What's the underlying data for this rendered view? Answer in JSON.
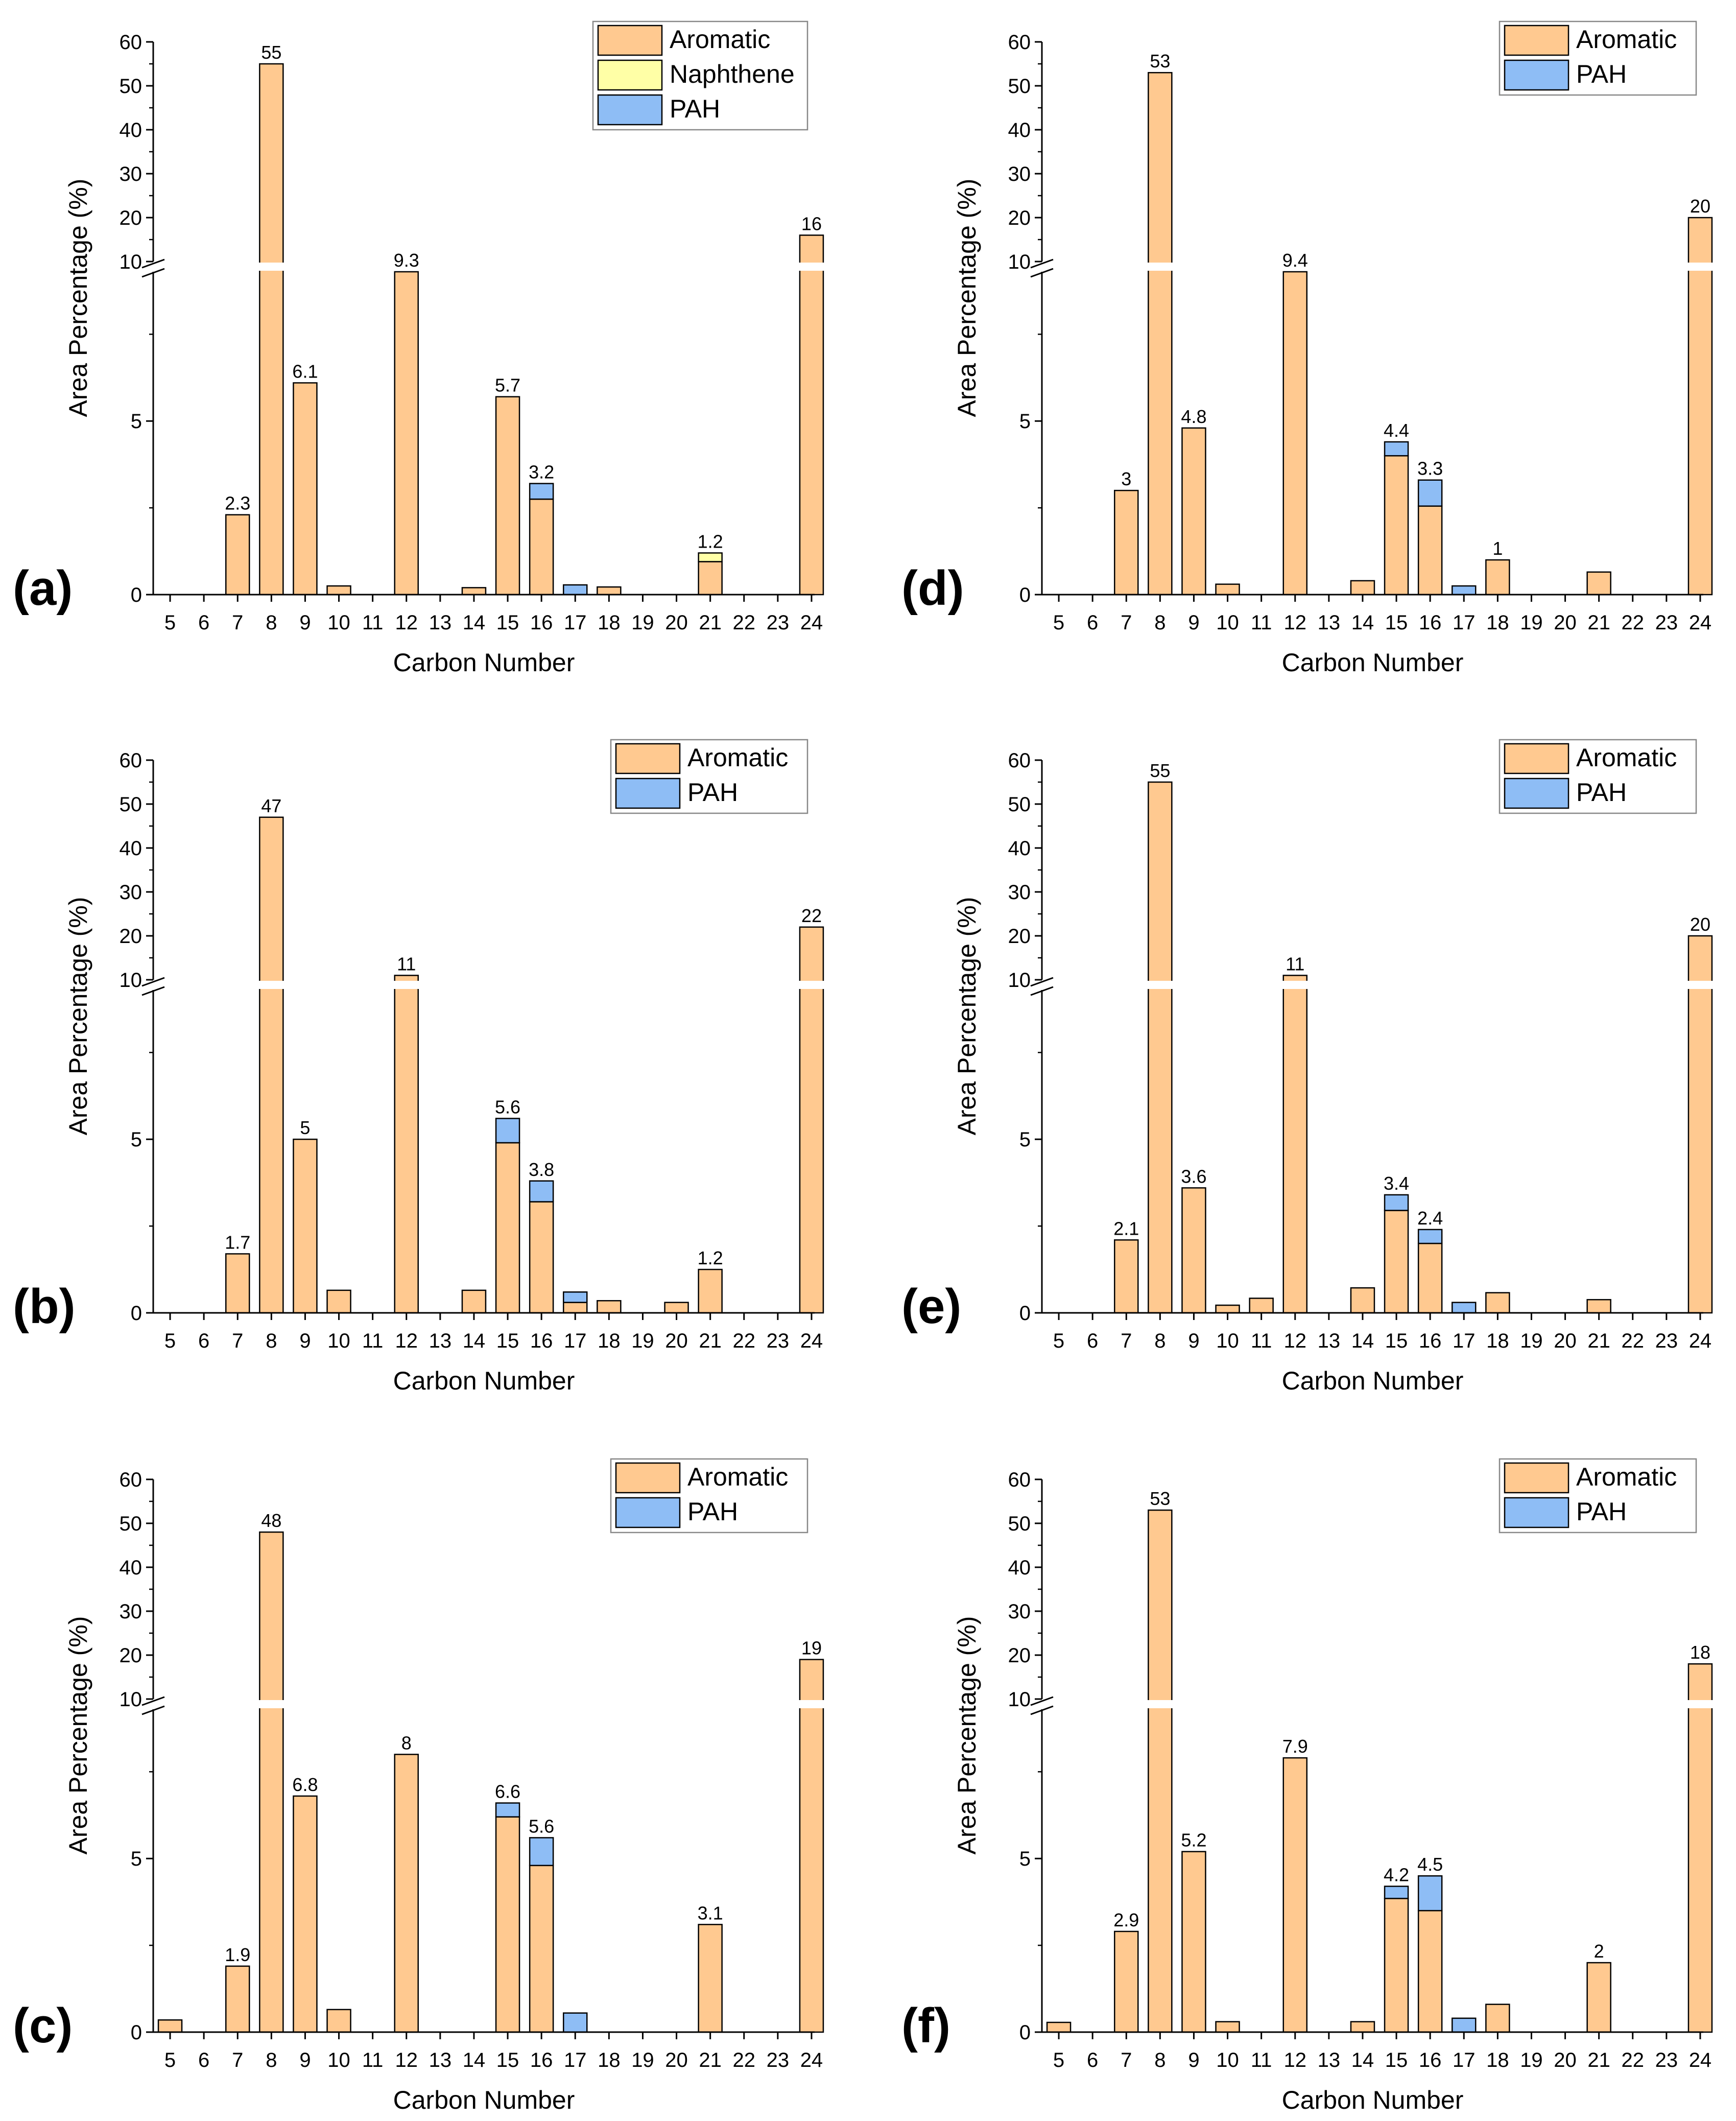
{
  "colors": {
    "aromatic": "#FFC990",
    "naphthene": "#FFFFA6",
    "pah": "#8EBDF5",
    "stroke": "#000000"
  },
  "chart_data": [
    {
      "panel": "(a)",
      "type": "bar",
      "stacked": true,
      "xlabel": "Carbon Number",
      "ylabel": "Area Percentage (%)",
      "categories": [
        "5",
        "6",
        "7",
        "8",
        "9",
        "10",
        "11",
        "12",
        "13",
        "14",
        "15",
        "16",
        "17",
        "18",
        "19",
        "20",
        "21",
        "22",
        "23",
        "24"
      ],
      "series": [
        {
          "name": "Aromatic",
          "values": [
            0,
            0,
            2.3,
            55,
            6.1,
            0.25,
            0,
            9.3,
            0,
            0.2,
            5.7,
            2.75,
            0,
            0.22,
            0,
            0,
            0.95,
            0,
            0,
            16
          ]
        },
        {
          "name": "Naphthene",
          "values": [
            0,
            0,
            0,
            0,
            0,
            0,
            0,
            0,
            0,
            0,
            0,
            0,
            0,
            0,
            0,
            0,
            0.25,
            0,
            0,
            0
          ]
        },
        {
          "name": "PAH",
          "values": [
            0,
            0,
            0,
            0,
            0,
            0,
            0,
            0,
            0,
            0,
            0,
            0.45,
            0.28,
            0,
            0,
            0,
            0,
            0,
            0,
            0
          ]
        }
      ],
      "labels": [
        {
          "x": "7",
          "text": "2.3"
        },
        {
          "x": "8",
          "text": "55"
        },
        {
          "x": "9",
          "text": "6.1"
        },
        {
          "x": "12",
          "text": "9.3"
        },
        {
          "x": "15",
          "text": "5.7"
        },
        {
          "x": "16",
          "text": "3.2"
        },
        {
          "x": "21",
          "text": "1.2"
        },
        {
          "x": "24",
          "text": "16"
        }
      ],
      "lower_axis": {
        "range": [
          0,
          9.3
        ],
        "ticks": [
          "0",
          "5"
        ]
      },
      "upper_axis": {
        "range": [
          10,
          60
        ],
        "ticks": [
          "10",
          "20",
          "30",
          "40",
          "50",
          "60"
        ]
      },
      "legend": [
        "Aromatic",
        "Naphthene",
        "PAH"
      ],
      "legend_position": "top-right"
    },
    {
      "panel": "(b)",
      "type": "bar",
      "stacked": true,
      "xlabel": "Carbon Number",
      "ylabel": "Area Percentage (%)",
      "categories": [
        "5",
        "6",
        "7",
        "8",
        "9",
        "10",
        "11",
        "12",
        "13",
        "14",
        "15",
        "16",
        "17",
        "18",
        "19",
        "20",
        "21",
        "22",
        "23",
        "24"
      ],
      "series": [
        {
          "name": "Aromatic",
          "values": [
            0,
            0,
            1.7,
            47,
            5,
            0.65,
            0,
            11,
            0,
            0.65,
            4.9,
            3.2,
            0.3,
            0.35,
            0,
            0.3,
            1.25,
            0,
            0,
            22
          ]
        },
        {
          "name": "PAH",
          "values": [
            0,
            0,
            0,
            0,
            0,
            0,
            0,
            0,
            0,
            0,
            0.7,
            0.6,
            0.3,
            0,
            0,
            0,
            0,
            0,
            0,
            0
          ]
        }
      ],
      "labels": [
        {
          "x": "7",
          "text": "1.7"
        },
        {
          "x": "8",
          "text": "47"
        },
        {
          "x": "9",
          "text": "5"
        },
        {
          "x": "12",
          "text": "11"
        },
        {
          "x": "15",
          "text": "5.6"
        },
        {
          "x": "16",
          "text": "3.8"
        },
        {
          "x": "21",
          "text": "1.2"
        },
        {
          "x": "24",
          "text": "22"
        }
      ],
      "lower_axis": {
        "range": [
          0,
          9.3
        ],
        "ticks": [
          "0",
          "5"
        ]
      },
      "upper_axis": {
        "range": [
          10,
          60
        ],
        "ticks": [
          "10",
          "20",
          "30",
          "40",
          "50",
          "60"
        ]
      },
      "legend": [
        "Aromatic",
        "PAH"
      ],
      "legend_position": "top-right"
    },
    {
      "panel": "(c)",
      "type": "bar",
      "stacked": true,
      "xlabel": "Carbon Number",
      "ylabel": "Area Percentage (%)",
      "categories": [
        "5",
        "6",
        "7",
        "8",
        "9",
        "10",
        "11",
        "12",
        "13",
        "14",
        "15",
        "16",
        "17",
        "18",
        "19",
        "20",
        "21",
        "22",
        "23",
        "24"
      ],
      "series": [
        {
          "name": "Aromatic",
          "values": [
            0.35,
            0,
            1.9,
            48,
            6.8,
            0.65,
            0,
            8,
            0,
            0,
            6.2,
            4.8,
            0,
            0,
            0,
            0,
            3.1,
            0,
            0,
            19
          ]
        },
        {
          "name": "PAH",
          "values": [
            0,
            0,
            0,
            0,
            0,
            0,
            0,
            0,
            0,
            0,
            0.4,
            0.8,
            0.55,
            0,
            0,
            0,
            0,
            0,
            0,
            0
          ]
        }
      ],
      "labels": [
        {
          "x": "7",
          "text": "1.9"
        },
        {
          "x": "8",
          "text": "48"
        },
        {
          "x": "9",
          "text": "6.8"
        },
        {
          "x": "12",
          "text": "8"
        },
        {
          "x": "15",
          "text": "6.6"
        },
        {
          "x": "16",
          "text": "5.6"
        },
        {
          "x": "21",
          "text": "3.1"
        },
        {
          "x": "24",
          "text": "19"
        }
      ],
      "lower_axis": {
        "range": [
          0,
          9.3
        ],
        "ticks": [
          "0",
          "5"
        ]
      },
      "upper_axis": {
        "range": [
          10,
          60
        ],
        "ticks": [
          "10",
          "20",
          "30",
          "40",
          "50",
          "60"
        ]
      },
      "legend": [
        "Aromatic",
        "PAH"
      ],
      "legend_position": "top-right"
    },
    {
      "panel": "(d)",
      "type": "bar",
      "stacked": true,
      "xlabel": "Carbon Number",
      "ylabel": "Area Percentage (%)",
      "categories": [
        "5",
        "6",
        "7",
        "8",
        "9",
        "10",
        "11",
        "12",
        "13",
        "14",
        "15",
        "16",
        "17",
        "18",
        "19",
        "20",
        "21",
        "22",
        "23",
        "24"
      ],
      "series": [
        {
          "name": "Aromatic",
          "values": [
            0,
            0,
            3,
            53,
            4.8,
            0.3,
            0,
            9.4,
            0,
            0.4,
            4,
            2.55,
            0,
            1,
            0,
            0,
            0.65,
            0,
            0,
            20
          ]
        },
        {
          "name": "PAH",
          "values": [
            0,
            0,
            0,
            0,
            0,
            0,
            0,
            0,
            0,
            0,
            0.4,
            0.75,
            0.25,
            0,
            0,
            0,
            0,
            0,
            0,
            0
          ]
        }
      ],
      "labels": [
        {
          "x": "7",
          "text": "3"
        },
        {
          "x": "8",
          "text": "53"
        },
        {
          "x": "9",
          "text": "4.8"
        },
        {
          "x": "12",
          "text": "9.4"
        },
        {
          "x": "15",
          "text": "4.4"
        },
        {
          "x": "16",
          "text": "3.3"
        },
        {
          "x": "18",
          "text": "1"
        },
        {
          "x": "24",
          "text": "20"
        }
      ],
      "lower_axis": {
        "range": [
          0,
          9.3
        ],
        "ticks": [
          "0",
          "5"
        ]
      },
      "upper_axis": {
        "range": [
          10,
          60
        ],
        "ticks": [
          "10",
          "20",
          "30",
          "40",
          "50",
          "60"
        ]
      },
      "legend": [
        "Aromatic",
        "PAH"
      ],
      "legend_position": "top-right"
    },
    {
      "panel": "(e)",
      "type": "bar",
      "stacked": true,
      "xlabel": "Carbon Number",
      "ylabel": "Area Percentage (%)",
      "categories": [
        "5",
        "6",
        "7",
        "8",
        "9",
        "10",
        "11",
        "12",
        "13",
        "14",
        "15",
        "16",
        "17",
        "18",
        "19",
        "20",
        "21",
        "22",
        "23",
        "24"
      ],
      "series": [
        {
          "name": "Aromatic",
          "values": [
            0,
            0,
            2.1,
            55,
            3.6,
            0.22,
            0.42,
            11,
            0,
            0.72,
            2.95,
            2,
            0,
            0.58,
            0,
            0,
            0.38,
            0,
            0,
            20
          ]
        },
        {
          "name": "PAH",
          "values": [
            0,
            0,
            0,
            0,
            0,
            0,
            0,
            0,
            0,
            0,
            0.45,
            0.4,
            0.3,
            0,
            0,
            0,
            0,
            0,
            0,
            0
          ]
        }
      ],
      "labels": [
        {
          "x": "7",
          "text": "2.1"
        },
        {
          "x": "8",
          "text": "55"
        },
        {
          "x": "9",
          "text": "3.6"
        },
        {
          "x": "12",
          "text": "11"
        },
        {
          "x": "15",
          "text": "3.4"
        },
        {
          "x": "16",
          "text": "2.4"
        },
        {
          "x": "24",
          "text": "20"
        }
      ],
      "lower_axis": {
        "range": [
          0,
          9.3
        ],
        "ticks": [
          "0",
          "5"
        ]
      },
      "upper_axis": {
        "range": [
          10,
          60
        ],
        "ticks": [
          "10",
          "20",
          "30",
          "40",
          "50",
          "60"
        ]
      },
      "legend": [
        "Aromatic",
        "PAH"
      ],
      "legend_position": "top-right"
    },
    {
      "panel": "(f)",
      "type": "bar",
      "stacked": true,
      "xlabel": "Carbon Number",
      "ylabel": "Area Percentage (%)",
      "categories": [
        "5",
        "6",
        "7",
        "8",
        "9",
        "10",
        "11",
        "12",
        "13",
        "14",
        "15",
        "16",
        "17",
        "18",
        "19",
        "20",
        "21",
        "22",
        "23",
        "24"
      ],
      "series": [
        {
          "name": "Aromatic",
          "values": [
            0.28,
            0,
            2.9,
            53,
            5.2,
            0.3,
            0,
            7.9,
            0,
            0.3,
            3.85,
            3.5,
            0,
            0.8,
            0,
            0,
            2,
            0,
            0,
            18
          ]
        },
        {
          "name": "PAH",
          "values": [
            0,
            0,
            0,
            0,
            0,
            0,
            0,
            0,
            0,
            0,
            0.35,
            1,
            0.4,
            0,
            0,
            0,
            0,
            0,
            0,
            0
          ]
        }
      ],
      "labels": [
        {
          "x": "7",
          "text": "2.9"
        },
        {
          "x": "8",
          "text": "53"
        },
        {
          "x": "9",
          "text": "5.2"
        },
        {
          "x": "12",
          "text": "7.9"
        },
        {
          "x": "15",
          "text": "4.2"
        },
        {
          "x": "16",
          "text": "4.5"
        },
        {
          "x": "21",
          "text": "2"
        },
        {
          "x": "24",
          "text": "18"
        }
      ],
      "lower_axis": {
        "range": [
          0,
          9.3
        ],
        "ticks": [
          "0",
          "5"
        ]
      },
      "upper_axis": {
        "range": [
          10,
          60
        ],
        "ticks": [
          "10",
          "20",
          "30",
          "40",
          "50",
          "60"
        ]
      },
      "legend": [
        "Aromatic",
        "PAH"
      ],
      "legend_position": "top-right"
    }
  ]
}
